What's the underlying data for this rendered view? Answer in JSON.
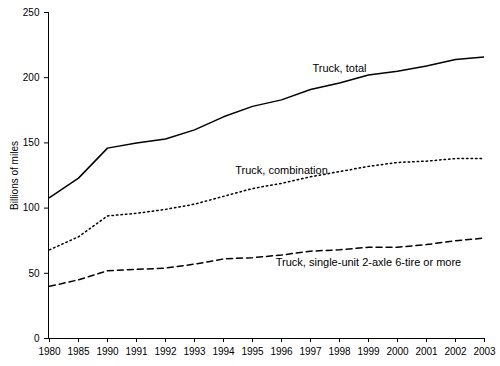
{
  "chart_data": {
    "type": "line",
    "y_label": "Billions of miles",
    "categories": [
      "1980",
      "1985",
      "1990",
      "1991",
      "1992",
      "1993",
      "1994",
      "1995",
      "1996",
      "1997",
      "1998",
      "1999",
      "2000",
      "2001",
      "2002",
      "2003"
    ],
    "series": [
      {
        "name": "Truck, total",
        "color": "#000000",
        "line_style": "solid",
        "values": [
          108,
          123,
          146,
          150,
          153,
          160,
          170,
          178,
          183,
          191,
          196,
          202,
          205,
          209,
          214,
          216
        ]
      },
      {
        "name": "Truck, combination",
        "color": "#000000",
        "line_style": "dotted",
        "values": [
          68,
          78,
          94,
          96,
          99,
          103,
          109,
          115,
          119,
          124,
          128,
          132,
          135,
          136,
          138,
          138
        ]
      },
      {
        "name": "Truck, single-unit 2-axle 6-tire or more",
        "color": "#000000",
        "line_style": "dashed",
        "values": [
          40,
          45,
          52,
          53,
          54,
          57,
          61,
          62,
          64,
          67,
          68,
          70,
          70,
          72,
          75,
          77
        ]
      }
    ],
    "ylim": [
      0,
      250
    ],
    "yticks": [
      0,
      50,
      100,
      150,
      200,
      250
    ],
    "grid": false
  }
}
